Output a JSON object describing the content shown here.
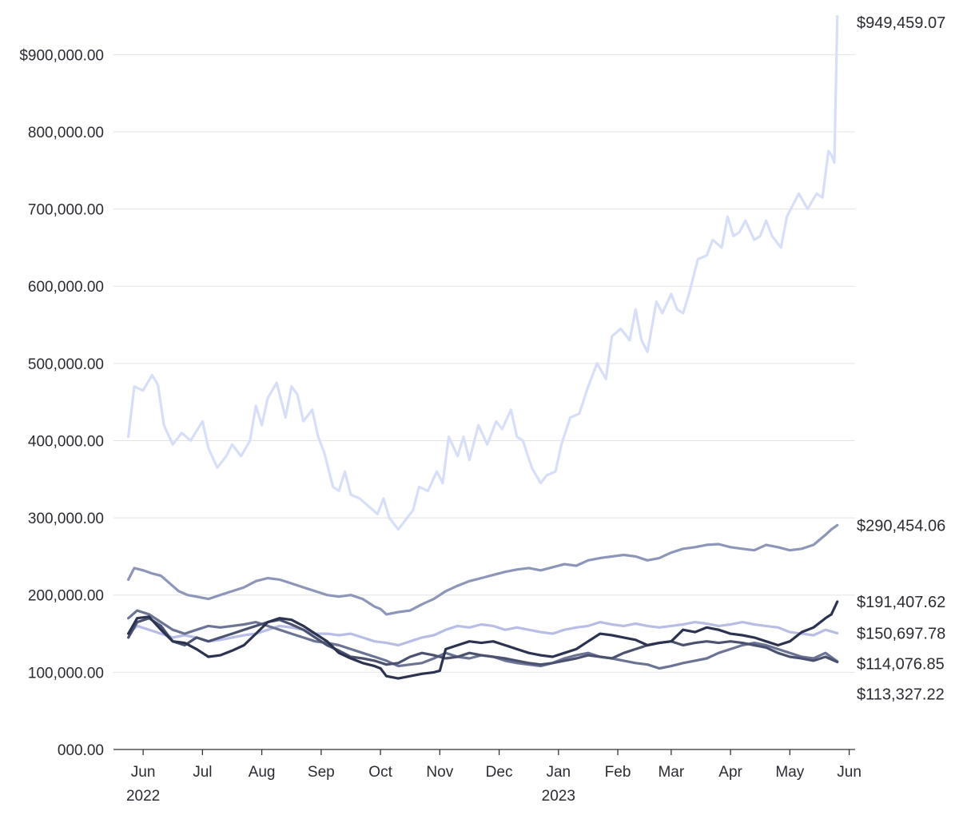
{
  "chart_data": {
    "type": "line",
    "title": "",
    "xlabel": "",
    "ylabel": "",
    "ylim": [
      0,
      950000
    ],
    "grid": true,
    "y_ticks": [
      {
        "value": 0,
        "label": "000.00"
      },
      {
        "value": 100000,
        "label": "100,000.00"
      },
      {
        "value": 200000,
        "label": "200,000.00"
      },
      {
        "value": 300000,
        "label": "300,000.00"
      },
      {
        "value": 400000,
        "label": "400,000.00"
      },
      {
        "value": 500000,
        "label": "500,000.00"
      },
      {
        "value": 600000,
        "label": "600,000.00"
      },
      {
        "value": 700000,
        "label": "700,000.00"
      },
      {
        "value": 800000,
        "label": "800,000.00"
      },
      {
        "value": 900000,
        "label": "$900,000.00"
      }
    ],
    "x_domain": [
      0,
      12.5
    ],
    "x_ticks": [
      {
        "value": 0.5,
        "label": "Jun",
        "year": "2022"
      },
      {
        "value": 1.5,
        "label": "Jul"
      },
      {
        "value": 2.5,
        "label": "Aug"
      },
      {
        "value": 3.5,
        "label": "Sep"
      },
      {
        "value": 4.5,
        "label": "Oct"
      },
      {
        "value": 5.5,
        "label": "Nov"
      },
      {
        "value": 6.5,
        "label": "Dec"
      },
      {
        "value": 7.5,
        "label": "Jan",
        "year": "2023"
      },
      {
        "value": 8.5,
        "label": "Feb"
      },
      {
        "value": 9.4,
        "label": "Mar"
      },
      {
        "value": 10.4,
        "label": "Apr"
      },
      {
        "value": 11.4,
        "label": "May"
      },
      {
        "value": 12.4,
        "label": "Jun"
      }
    ],
    "series": [
      {
        "name": "series-1",
        "color": "#d6def8",
        "end_label": "$949,459.07",
        "x": [
          0.25,
          0.35,
          0.5,
          0.65,
          0.75,
          0.85,
          1.0,
          1.15,
          1.3,
          1.5,
          1.6,
          1.75,
          1.9,
          2.0,
          2.15,
          2.3,
          2.4,
          2.5,
          2.6,
          2.75,
          2.9,
          3.0,
          3.1,
          3.2,
          3.35,
          3.45,
          3.55,
          3.7,
          3.8,
          3.9,
          4.0,
          4.15,
          4.3,
          4.45,
          4.55,
          4.65,
          4.8,
          4.95,
          5.05,
          5.15,
          5.3,
          5.45,
          5.55,
          5.65,
          5.8,
          5.9,
          6.0,
          6.15,
          6.3,
          6.45,
          6.55,
          6.7,
          6.8,
          6.9,
          7.05,
          7.2,
          7.3,
          7.45,
          7.55,
          7.7,
          7.85,
          8.0,
          8.15,
          8.3,
          8.4,
          8.55,
          8.7,
          8.8,
          8.9,
          9.0,
          9.15,
          9.25,
          9.4,
          9.5,
          9.6,
          9.7,
          9.85,
          10.0,
          10.1,
          10.25,
          10.35,
          10.45,
          10.55,
          10.65,
          10.8,
          10.9,
          11.0,
          11.1,
          11.25,
          11.35,
          11.45,
          11.55,
          11.7,
          11.85,
          11.95,
          12.05,
          12.1,
          12.15,
          12.2
        ],
        "values": [
          405000,
          470000,
          465000,
          485000,
          472000,
          420000,
          395000,
          410000,
          400000,
          425000,
          390000,
          365000,
          380000,
          395000,
          380000,
          400000,
          445000,
          420000,
          455000,
          475000,
          430000,
          470000,
          460000,
          425000,
          440000,
          405000,
          385000,
          340000,
          335000,
          360000,
          330000,
          325000,
          315000,
          305000,
          325000,
          300000,
          285000,
          300000,
          310000,
          340000,
          335000,
          360000,
          345000,
          405000,
          380000,
          405000,
          375000,
          420000,
          395000,
          425000,
          415000,
          440000,
          405000,
          400000,
          365000,
          345000,
          355000,
          360000,
          395000,
          430000,
          435000,
          470000,
          500000,
          480000,
          535000,
          545000,
          530000,
          570000,
          530000,
          515000,
          580000,
          565000,
          590000,
          570000,
          565000,
          590000,
          635000,
          640000,
          660000,
          650000,
          690000,
          665000,
          670000,
          685000,
          660000,
          665000,
          685000,
          665000,
          650000,
          690000,
          705000,
          720000,
          700000,
          720000,
          715000,
          775000,
          770000,
          760000,
          949459.07
        ]
      },
      {
        "name": "series-2",
        "color": "#8d96b8",
        "end_label": "$290,454.06",
        "x": [
          0.25,
          0.35,
          0.5,
          0.65,
          0.8,
          0.95,
          1.1,
          1.25,
          1.4,
          1.6,
          1.8,
          2.0,
          2.2,
          2.4,
          2.6,
          2.8,
          3.0,
          3.2,
          3.4,
          3.6,
          3.8,
          4.0,
          4.2,
          4.4,
          4.5,
          4.6,
          4.8,
          5.0,
          5.2,
          5.4,
          5.5,
          5.6,
          5.8,
          6.0,
          6.2,
          6.4,
          6.6,
          6.8,
          7.0,
          7.2,
          7.4,
          7.6,
          7.8,
          8.0,
          8.2,
          8.4,
          8.6,
          8.8,
          9.0,
          9.2,
          9.4,
          9.6,
          9.8,
          10.0,
          10.2,
          10.4,
          10.6,
          10.8,
          11.0,
          11.2,
          11.4,
          11.6,
          11.8,
          12.0,
          12.1,
          12.2
        ],
        "values": [
          220000,
          235000,
          232000,
          228000,
          225000,
          215000,
          205000,
          200000,
          198000,
          195000,
          200000,
          205000,
          210000,
          218000,
          222000,
          220000,
          215000,
          210000,
          205000,
          200000,
          198000,
          200000,
          195000,
          185000,
          182000,
          175000,
          178000,
          180000,
          188000,
          195000,
          200000,
          205000,
          212000,
          218000,
          222000,
          226000,
          230000,
          233000,
          235000,
          232000,
          236000,
          240000,
          238000,
          245000,
          248000,
          250000,
          252000,
          250000,
          245000,
          248000,
          255000,
          260000,
          262000,
          265000,
          266000,
          262000,
          260000,
          258000,
          265000,
          262000,
          258000,
          260000,
          265000,
          278000,
          285000,
          290454.06
        ]
      },
      {
        "name": "series-3",
        "color": "#b7bde4",
        "end_label": "$150,697.78",
        "x": [
          0.25,
          0.4,
          0.6,
          0.8,
          1.0,
          1.2,
          1.4,
          1.6,
          1.8,
          2.0,
          2.2,
          2.4,
          2.6,
          2.8,
          3.0,
          3.2,
          3.4,
          3.6,
          3.8,
          4.0,
          4.2,
          4.4,
          4.6,
          4.8,
          5.0,
          5.2,
          5.4,
          5.6,
          5.8,
          6.0,
          6.2,
          6.4,
          6.6,
          6.8,
          7.0,
          7.2,
          7.4,
          7.6,
          7.8,
          8.0,
          8.2,
          8.4,
          8.6,
          8.8,
          9.0,
          9.2,
          9.4,
          9.6,
          9.8,
          10.0,
          10.2,
          10.4,
          10.6,
          10.8,
          11.0,
          11.2,
          11.4,
          11.6,
          11.8,
          12.0,
          12.2
        ],
        "values": [
          150000,
          160000,
          155000,
          150000,
          145000,
          148000,
          145000,
          140000,
          142000,
          145000,
          148000,
          150000,
          155000,
          160000,
          158000,
          155000,
          150000,
          150000,
          148000,
          150000,
          145000,
          140000,
          138000,
          135000,
          140000,
          145000,
          148000,
          155000,
          160000,
          158000,
          162000,
          160000,
          155000,
          158000,
          155000,
          152000,
          150000,
          155000,
          158000,
          160000,
          165000,
          162000,
          160000,
          163000,
          160000,
          158000,
          160000,
          162000,
          165000,
          163000,
          160000,
          162000,
          165000,
          162000,
          160000,
          158000,
          152000,
          150000,
          148000,
          155000,
          150697.78
        ]
      },
      {
        "name": "series-4",
        "color": "#6b7494",
        "end_label": "$114,076.85",
        "x": [
          0.25,
          0.4,
          0.6,
          0.8,
          1.0,
          1.2,
          1.4,
          1.6,
          1.8,
          2.0,
          2.2,
          2.4,
          2.6,
          2.8,
          3.0,
          3.2,
          3.4,
          3.6,
          3.8,
          4.0,
          4.2,
          4.4,
          4.6,
          4.8,
          5.0,
          5.2,
          5.4,
          5.6,
          5.8,
          6.0,
          6.2,
          6.4,
          6.6,
          6.8,
          7.0,
          7.2,
          7.4,
          7.6,
          7.8,
          8.0,
          8.2,
          8.4,
          8.6,
          8.8,
          9.0,
          9.2,
          9.4,
          9.6,
          9.8,
          10.0,
          10.2,
          10.4,
          10.6,
          10.8,
          11.0,
          11.2,
          11.4,
          11.6,
          11.8,
          12.0,
          12.2
        ],
        "values": [
          170000,
          180000,
          175000,
          165000,
          155000,
          150000,
          155000,
          160000,
          158000,
          160000,
          162000,
          165000,
          160000,
          155000,
          150000,
          145000,
          140000,
          138000,
          135000,
          130000,
          125000,
          120000,
          115000,
          108000,
          110000,
          112000,
          118000,
          125000,
          120000,
          118000,
          122000,
          120000,
          115000,
          112000,
          110000,
          108000,
          112000,
          118000,
          122000,
          125000,
          120000,
          118000,
          115000,
          112000,
          110000,
          105000,
          108000,
          112000,
          115000,
          118000,
          125000,
          130000,
          135000,
          138000,
          135000,
          130000,
          125000,
          120000,
          118000,
          125000,
          114076.85
        ]
      },
      {
        "name": "series-5",
        "color": "#4b5270",
        "end_label": "$113,327.22",
        "x": [
          0.25,
          0.4,
          0.6,
          0.8,
          1.0,
          1.2,
          1.4,
          1.6,
          1.8,
          2.0,
          2.2,
          2.4,
          2.6,
          2.8,
          3.0,
          3.2,
          3.4,
          3.6,
          3.8,
          4.0,
          4.2,
          4.4,
          4.6,
          4.8,
          5.0,
          5.2,
          5.4,
          5.6,
          5.8,
          6.0,
          6.2,
          6.4,
          6.6,
          6.8,
          7.0,
          7.2,
          7.4,
          7.6,
          7.8,
          8.0,
          8.2,
          8.4,
          8.6,
          8.8,
          9.0,
          9.2,
          9.4,
          9.6,
          9.8,
          10.0,
          10.2,
          10.4,
          10.6,
          10.8,
          11.0,
          11.2,
          11.4,
          11.6,
          11.8,
          12.0,
          12.2
        ],
        "values": [
          145000,
          165000,
          170000,
          160000,
          140000,
          135000,
          145000,
          140000,
          145000,
          150000,
          155000,
          160000,
          165000,
          168000,
          162000,
          155000,
          145000,
          135000,
          128000,
          120000,
          118000,
          115000,
          110000,
          112000,
          120000,
          125000,
          122000,
          118000,
          120000,
          125000,
          122000,
          120000,
          118000,
          115000,
          112000,
          110000,
          112000,
          115000,
          118000,
          122000,
          120000,
          118000,
          125000,
          130000,
          135000,
          138000,
          140000,
          135000,
          138000,
          140000,
          138000,
          140000,
          138000,
          135000,
          132000,
          125000,
          120000,
          118000,
          115000,
          120000,
          113327.22
        ]
      },
      {
        "name": "series-6",
        "color": "#2c3350",
        "end_label": "$191,407.62",
        "x": [
          0.25,
          0.4,
          0.6,
          0.8,
          1.0,
          1.2,
          1.4,
          1.6,
          1.8,
          2.0,
          2.2,
          2.4,
          2.6,
          2.8,
          3.0,
          3.2,
          3.4,
          3.6,
          3.8,
          4.0,
          4.2,
          4.4,
          4.5,
          4.6,
          4.8,
          5.0,
          5.2,
          5.4,
          5.5,
          5.6,
          5.8,
          6.0,
          6.2,
          6.4,
          6.6,
          6.8,
          7.0,
          7.2,
          7.4,
          7.6,
          7.8,
          8.0,
          8.2,
          8.4,
          8.6,
          8.8,
          9.0,
          9.2,
          9.4,
          9.6,
          9.8,
          10.0,
          10.2,
          10.4,
          10.6,
          10.8,
          11.0,
          11.2,
          11.4,
          11.6,
          11.8,
          12.0,
          12.1,
          12.2
        ],
        "values": [
          150000,
          170000,
          172000,
          155000,
          140000,
          138000,
          130000,
          120000,
          122000,
          128000,
          135000,
          150000,
          165000,
          170000,
          168000,
          160000,
          150000,
          140000,
          125000,
          118000,
          112000,
          108000,
          105000,
          95000,
          92000,
          95000,
          98000,
          100000,
          102000,
          130000,
          135000,
          140000,
          138000,
          140000,
          135000,
          130000,
          125000,
          122000,
          120000,
          125000,
          130000,
          140000,
          150000,
          148000,
          145000,
          142000,
          135000,
          138000,
          140000,
          155000,
          152000,
          158000,
          155000,
          150000,
          148000,
          145000,
          140000,
          135000,
          140000,
          152000,
          158000,
          170000,
          175000,
          191407.62
        ]
      }
    ]
  }
}
